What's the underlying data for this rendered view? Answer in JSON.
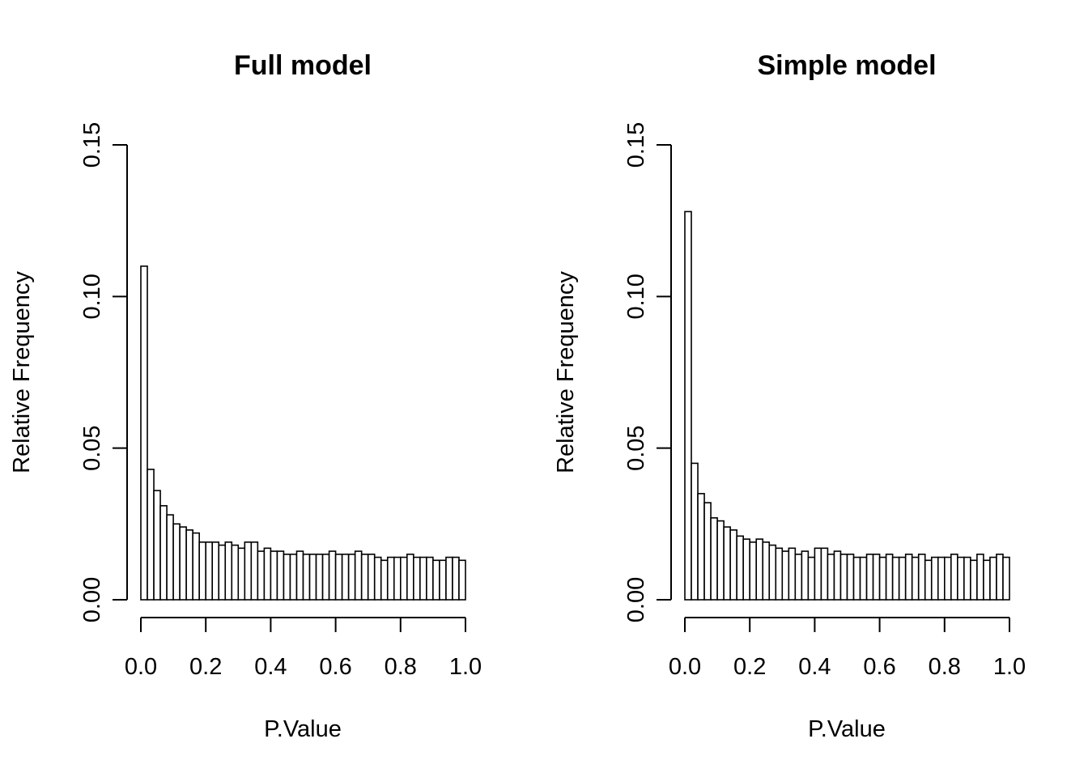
{
  "chart_data": [
    {
      "type": "bar",
      "title": "Full model",
      "xlabel": "P.Value",
      "ylabel": "Relative Frequency",
      "bin_width": 0.02,
      "xlim": [
        0,
        1
      ],
      "ylim": [
        0,
        0.15
      ],
      "x_ticks": [
        "0.0",
        "0.2",
        "0.4",
        "0.6",
        "0.8",
        "1.0"
      ],
      "y_ticks": [
        "0.00",
        "0.05",
        "0.10",
        "0.15"
      ],
      "grid": false,
      "legend": "none",
      "values": [
        0.11,
        0.043,
        0.036,
        0.031,
        0.028,
        0.025,
        0.024,
        0.023,
        0.022,
        0.019,
        0.019,
        0.019,
        0.018,
        0.019,
        0.018,
        0.017,
        0.019,
        0.019,
        0.016,
        0.017,
        0.016,
        0.016,
        0.015,
        0.015,
        0.016,
        0.015,
        0.015,
        0.015,
        0.015,
        0.016,
        0.015,
        0.015,
        0.015,
        0.016,
        0.015,
        0.015,
        0.014,
        0.013,
        0.014,
        0.014,
        0.014,
        0.015,
        0.014,
        0.014,
        0.014,
        0.013,
        0.013,
        0.014,
        0.014,
        0.013
      ]
    },
    {
      "type": "bar",
      "title": "Simple model",
      "xlabel": "P.Value",
      "ylabel": "Relative Frequency",
      "bin_width": 0.02,
      "xlim": [
        0,
        1
      ],
      "ylim": [
        0,
        0.15
      ],
      "x_ticks": [
        "0.0",
        "0.2",
        "0.4",
        "0.6",
        "0.8",
        "1.0"
      ],
      "y_ticks": [
        "0.00",
        "0.05",
        "0.10",
        "0.15"
      ],
      "grid": false,
      "legend": "none",
      "values": [
        0.128,
        0.045,
        0.035,
        0.032,
        0.027,
        0.026,
        0.024,
        0.023,
        0.021,
        0.02,
        0.019,
        0.02,
        0.019,
        0.018,
        0.017,
        0.016,
        0.017,
        0.015,
        0.016,
        0.014,
        0.017,
        0.017,
        0.015,
        0.016,
        0.015,
        0.015,
        0.014,
        0.014,
        0.015,
        0.015,
        0.014,
        0.015,
        0.014,
        0.014,
        0.015,
        0.014,
        0.015,
        0.013,
        0.014,
        0.014,
        0.014,
        0.015,
        0.014,
        0.014,
        0.013,
        0.015,
        0.013,
        0.014,
        0.015,
        0.014
      ]
    }
  ]
}
